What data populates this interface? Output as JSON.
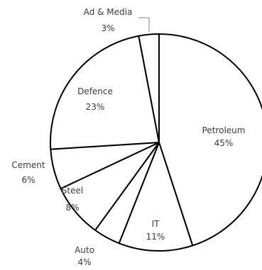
{
  "chart_data": {
    "type": "pie",
    "title": "",
    "slices": [
      {
        "name": "Petroleum",
        "value": 45,
        "label": "45%"
      },
      {
        "name": "IT",
        "value": 11,
        "label": "11%"
      },
      {
        "name": "Auto",
        "value": 4,
        "label": "4%"
      },
      {
        "name": "Steel",
        "value": 8,
        "label": "8%"
      },
      {
        "name": "Cement",
        "value": 6,
        "label": "6%"
      },
      {
        "name": "Defence",
        "value": 23,
        "label": "23%"
      },
      {
        "name": "Ad & Media",
        "value": 3,
        "label": "3%"
      }
    ],
    "start_angle_deg": 0,
    "direction": "clockwise",
    "slice_fill": "#ffffff",
    "stroke_color": "#000000",
    "text_color": "#3a3a3a"
  }
}
